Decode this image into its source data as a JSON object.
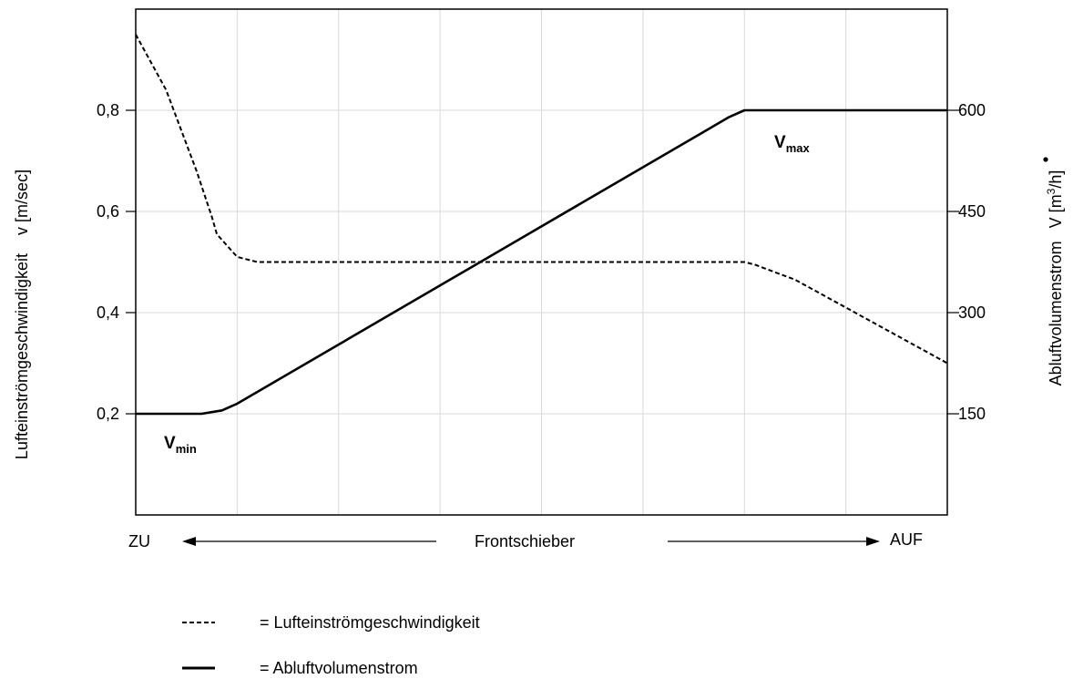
{
  "chart_data": {
    "type": "line",
    "x_range": [
      0,
      8
    ],
    "ylim_left": [
      0,
      1
    ],
    "ylim_right": [
      0,
      750
    ],
    "y_left_ticks": [
      0.2,
      0.4,
      0.6,
      0.8
    ],
    "y_left_tick_labels": [
      "0,2",
      "0,4",
      "0,6",
      "0,8"
    ],
    "y_right_ticks": [
      150,
      300,
      450,
      600
    ],
    "y_right_tick_labels": [
      "150",
      "300",
      "450",
      "600"
    ],
    "ylabel_left": "Lufteinströmgeschwindigkeit    v [m/sec]",
    "ylabel_right_text": "Abluftvolumenstrom",
    "ylabel_right_symbol": "V",
    "ylabel_right_unit_prefix": "[m",
    "ylabel_right_unit_sup": "3",
    "ylabel_right_unit_suffix": "/h]",
    "x_left_label": "ZU",
    "x_center_label": "Frontschieber",
    "x_right_label": "AUF",
    "grid": true,
    "series": [
      {
        "name": "Lufteinströmgeschwindigkeit",
        "axis": "left",
        "style": "dashed",
        "points": [
          [
            0,
            0.95
          ],
          [
            0.3,
            0.84
          ],
          [
            0.6,
            0.68
          ],
          [
            0.75,
            0.59
          ],
          [
            0.8,
            0.555
          ],
          [
            1.0,
            0.51
          ],
          [
            1.2,
            0.5
          ],
          [
            6.0,
            0.5
          ],
          [
            6.1,
            0.495
          ],
          [
            6.5,
            0.465
          ],
          [
            8,
            0.3
          ]
        ]
      },
      {
        "name": "Abluftvolumenstrom",
        "axis": "right",
        "style": "solid",
        "points": [
          [
            0,
            150
          ],
          [
            0.65,
            150
          ],
          [
            0.85,
            155
          ],
          [
            1.0,
            165
          ],
          [
            5.85,
            590
          ],
          [
            6.0,
            600
          ],
          [
            6.1,
            600
          ],
          [
            8,
            600
          ]
        ]
      }
    ],
    "annotations": [
      {
        "main": "V",
        "sub": "min"
      },
      {
        "main": "V",
        "sub": "max"
      }
    ],
    "legend": [
      {
        "style": "dashed",
        "text": "= Lufteinströmgeschwindigkeit"
      },
      {
        "style": "solid",
        "text": "= Abluftvolumenstrom"
      }
    ]
  },
  "colors": {
    "line": "#000000",
    "grid": "#d9d9d9",
    "background": "#ffffff"
  }
}
